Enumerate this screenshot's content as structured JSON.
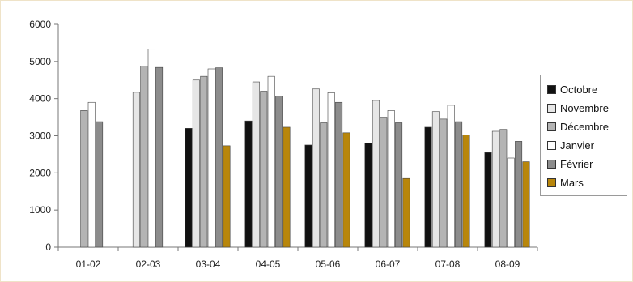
{
  "chart_data": {
    "type": "bar",
    "title": "",
    "xlabel": "",
    "ylabel": "",
    "ylim": [
      0,
      6000
    ],
    "yticks": [
      0,
      1000,
      2000,
      3000,
      4000,
      5000,
      6000
    ],
    "grid": false,
    "legend_position": "right",
    "categories": [
      "01-02",
      "02-03",
      "03-04",
      "04-05",
      "05-06",
      "06-07",
      "07-08",
      "08-09"
    ],
    "series": [
      {
        "name": "Octobre",
        "color": "#111111",
        "values": [
          null,
          null,
          3200,
          3400,
          2750,
          2800,
          3230,
          2550
        ]
      },
      {
        "name": "Novembre",
        "color": "#e6e6e6",
        "values": [
          null,
          4170,
          4500,
          4450,
          4260,
          3950,
          3650,
          3120
        ]
      },
      {
        "name": "Décembre",
        "color": "#b4b4b4",
        "values": [
          3680,
          4880,
          4600,
          4200,
          3350,
          3500,
          3450,
          3170
        ]
      },
      {
        "name": "Janvier",
        "color": "#ffffff",
        "values": [
          3900,
          5330,
          4800,
          4600,
          4160,
          3680,
          3820,
          2400
        ]
      },
      {
        "name": "Février",
        "color": "#8c8c8c",
        "values": [
          3380,
          4840,
          4830,
          4070,
          3900,
          3350,
          3380,
          2850
        ]
      },
      {
        "name": "Mars",
        "color": "#b8860b",
        "values": [
          null,
          null,
          2730,
          3230,
          3080,
          1850,
          3020,
          2300
        ]
      }
    ]
  }
}
